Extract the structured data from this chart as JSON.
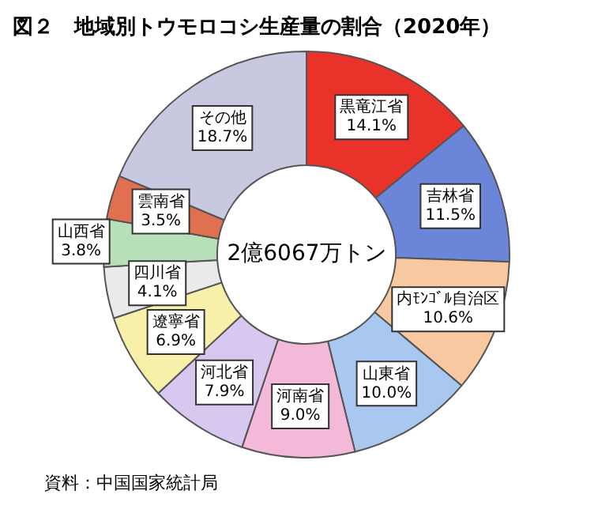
{
  "chart_data": {
    "type": "donut",
    "title": "図２　地域別トウモロコシ生産量の割合（2020年）",
    "categories": [
      "黒竜江省",
      "吉林省",
      "内ﾓﾝｺﾞﾙ自治区",
      "山東省",
      "河南省",
      "河北省",
      "遼寧省",
      "四川省",
      "山西省",
      "雲南省",
      "その他"
    ],
    "values": [
      14.1,
      11.5,
      10.6,
      10.0,
      9.0,
      7.9,
      6.9,
      4.1,
      3.8,
      3.5,
      18.7
    ],
    "value_labels": [
      "14.1%",
      "11.5%",
      "10.6%",
      "10.0%",
      "9.0%",
      "7.9%",
      "6.9%",
      "4.1%",
      "3.8%",
      "3.5%",
      "18.7%"
    ],
    "colors": [
      "#e8322a",
      "#6b86d8",
      "#f8c9a0",
      "#a8c8f0",
      "#f4b8d8",
      "#d8c8f0",
      "#f8f0a8",
      "#eaeaea",
      "#b8e0b8",
      "#e07050",
      "#c8c8e0"
    ],
    "legend": false,
    "annotations": [
      "2億6067万トン",
      "資料：中国国家統計局"
    ]
  }
}
